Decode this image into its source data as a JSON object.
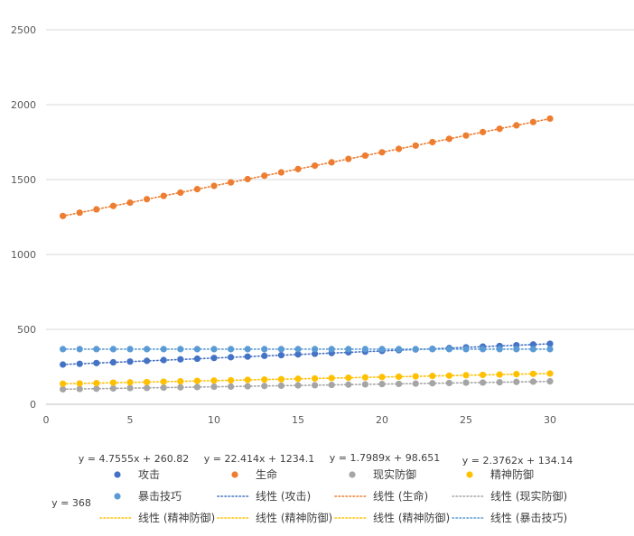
{
  "chart_data": {
    "type": "scatter",
    "title": "",
    "xlabel": "",
    "ylabel": "",
    "xlim": [
      0,
      35
    ],
    "ylim": [
      0,
      2500
    ],
    "x_ticks": [
      0,
      5,
      10,
      15,
      20,
      25,
      30
    ],
    "y_ticks": [
      0,
      500,
      1000,
      1500,
      2000,
      2500
    ],
    "grid": "horizontal",
    "legend_position": "bottom",
    "x": [
      1,
      2,
      3,
      4,
      5,
      6,
      7,
      8,
      9,
      10,
      11,
      12,
      13,
      14,
      15,
      16,
      17,
      18,
      19,
      20,
      21,
      22,
      23,
      24,
      25,
      26,
      27,
      28,
      29,
      30
    ],
    "series": [
      {
        "name": "攻击",
        "color": "#4472C4",
        "values": [
          265,
          270,
          275,
          280,
          285,
          290,
          295,
          300,
          304,
          309,
          314,
          318,
          323,
          328,
          333,
          337,
          342,
          347,
          351,
          356,
          361,
          366,
          370,
          375,
          380,
          385,
          389,
          394,
          399,
          404
        ],
        "trendline": {
          "name": "线性 (攻击)",
          "slope": 4.7555,
          "intercept": 260.82,
          "equation": "y = 4.7555x + 260.82"
        }
      },
      {
        "name": "生命",
        "color": "#ED7D31",
        "values": [
          1257,
          1279,
          1301,
          1324,
          1346,
          1369,
          1391,
          1413,
          1436,
          1458,
          1481,
          1503,
          1526,
          1548,
          1570,
          1593,
          1615,
          1638,
          1660,
          1682,
          1705,
          1727,
          1750,
          1772,
          1794,
          1817,
          1839,
          1862,
          1884,
          1907
        ],
        "trendline": {
          "name": "线性 (生命)",
          "slope": 22.414,
          "intercept": 1234.1,
          "equation": "y = 22.414x + 1234.1"
        }
      },
      {
        "name": "现实防御",
        "color": "#A5A5A5",
        "values": [
          100,
          102,
          104,
          106,
          108,
          109,
          111,
          113,
          115,
          117,
          118,
          120,
          122,
          124,
          126,
          127,
          129,
          131,
          133,
          135,
          136,
          138,
          140,
          142,
          144,
          145,
          147,
          149,
          151,
          153
        ],
        "trendline": {
          "name": "线性 (现实防御)",
          "slope": 1.7989,
          "intercept": 98.651,
          "equation": "y = 1.7989x + 98.651"
        }
      },
      {
        "name": "精神防御",
        "color": "#FFC000",
        "values": [
          137,
          139,
          141,
          144,
          146,
          148,
          151,
          153,
          156,
          158,
          160,
          163,
          165,
          167,
          170,
          172,
          175,
          177,
          179,
          182,
          184,
          186,
          189,
          191,
          194,
          196,
          198,
          201,
          203,
          205
        ],
        "trendline": {
          "name": "线性 (精神防御)",
          "slope": 2.3762,
          "intercept": 134.14,
          "equation": "y = 2.3762x + 134.14"
        }
      },
      {
        "name": "暴击技巧",
        "color": "#5B9BD5",
        "values": [
          368,
          368,
          368,
          368,
          368,
          368,
          368,
          368,
          368,
          368,
          368,
          368,
          368,
          368,
          368,
          368,
          368,
          368,
          368,
          368,
          368,
          368,
          368,
          368,
          368,
          368,
          368,
          368,
          368,
          368
        ],
        "trendline": {
          "name": "线性 (暴击技巧)",
          "slope": 0,
          "intercept": 368,
          "equation": "y = 368"
        }
      }
    ],
    "legend_entries": [
      "攻击",
      "生命",
      "现实防御",
      "精神防御",
      "暴击技巧",
      "线性 (攻击)",
      "线性 (生命)",
      "线性 (现实防御)",
      "线性 (精神防御)",
      "线性 (精神防御)",
      "线性 (精神防御)",
      "线性 (暴击技巧)"
    ]
  }
}
